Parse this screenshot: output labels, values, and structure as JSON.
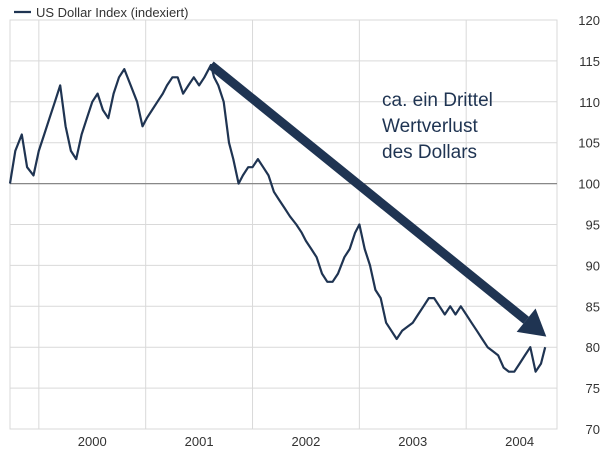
{
  "chart_data": {
    "type": "line",
    "title": "",
    "xlabel": "",
    "ylabel": "",
    "ylim": [
      70,
      120
    ],
    "y_ticks": [
      70,
      75,
      80,
      85,
      90,
      95,
      100,
      105,
      110,
      115,
      120
    ],
    "y_axis_side": "right",
    "x_tick_labels": [
      "2000",
      "2001",
      "2002",
      "2003",
      "2004"
    ],
    "x_range": [
      1999.73,
      2004.85
    ],
    "reference_line": 100,
    "grid": true,
    "legend": {
      "position": "top-left",
      "entries": [
        "US Dollar Index (indexiert)"
      ]
    },
    "colors": {
      "series": "#1f3452",
      "arrow": "#1f3452",
      "reference_line": "#888888",
      "grid": "#d9d9d9"
    },
    "annotation": {
      "lines": [
        "ca. ein Drittel",
        "Wertverlust",
        "des Dollars"
      ],
      "arrow": {
        "from": {
          "x": 2001.61,
          "y": 114.5
        },
        "to": {
          "x": 2004.75,
          "y": 81.3
        }
      }
    },
    "series": [
      {
        "name": "US Dollar Index (indexiert)",
        "x": [
          1999.73,
          1999.78,
          1999.84,
          1999.89,
          1999.95,
          2000.0,
          2000.05,
          2000.1,
          2000.15,
          2000.2,
          2000.25,
          2000.3,
          2000.35,
          2000.4,
          2000.45,
          2000.5,
          2000.55,
          2000.6,
          2000.65,
          2000.7,
          2000.75,
          2000.8,
          2000.86,
          2000.92,
          2000.97,
          2001.01,
          2001.06,
          2001.11,
          2001.16,
          2001.2,
          2001.25,
          2001.3,
          2001.35,
          2001.4,
          2001.45,
          2001.5,
          2001.55,
          2001.61,
          2001.64,
          2001.68,
          2001.73,
          2001.78,
          2001.82,
          2001.87,
          2001.91,
          2001.96,
          2002.0,
          2002.05,
          2002.1,
          2002.15,
          2002.2,
          2002.25,
          2002.3,
          2002.35,
          2002.41,
          2002.46,
          2002.5,
          2002.55,
          2002.6,
          2002.65,
          2002.7,
          2002.75,
          2002.8,
          2002.86,
          2002.91,
          2002.96,
          2003.0,
          2003.05,
          2003.1,
          2003.15,
          2003.2,
          2003.25,
          2003.3,
          2003.35,
          2003.4,
          2003.45,
          2003.5,
          2003.55,
          2003.6,
          2003.65,
          2003.7,
          2003.75,
          2003.8,
          2003.85,
          2003.9,
          2003.95,
          2004.0,
          2004.05,
          2004.1,
          2004.15,
          2004.2,
          2004.25,
          2004.3,
          2004.35,
          2004.4,
          2004.45,
          2004.5,
          2004.55,
          2004.6,
          2004.65,
          2004.7,
          2004.74
        ],
        "values": [
          100,
          104,
          106,
          102,
          101,
          104,
          106,
          108,
          110,
          112,
          107,
          104,
          103,
          106,
          108,
          110,
          111,
          109,
          108,
          111,
          113,
          114,
          112,
          110,
          107,
          108,
          109,
          110,
          111,
          112,
          113,
          113,
          111,
          112,
          113,
          112,
          113,
          114.5,
          113,
          112,
          110,
          105,
          103,
          100,
          101,
          102,
          102,
          103,
          102,
          101,
          99,
          98,
          97,
          96,
          95,
          94,
          93,
          92,
          91,
          89,
          88,
          88,
          89,
          91,
          92,
          94,
          95,
          92,
          90,
          87,
          86,
          83,
          82,
          81,
          82,
          82.5,
          83,
          84,
          85,
          86,
          86,
          85,
          84,
          85,
          84,
          85,
          84,
          83,
          82,
          81,
          80,
          79.5,
          79,
          77.5,
          77,
          77,
          78,
          79,
          80,
          77,
          78,
          80
        ]
      }
    ]
  }
}
